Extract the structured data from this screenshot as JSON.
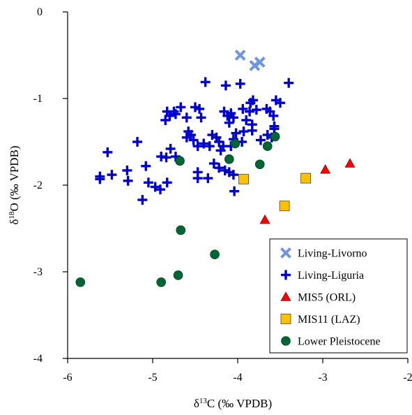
{
  "chart_data": {
    "type": "scatter",
    "xlabel_parts": [
      "δ",
      "13",
      "C (‰ VPDB)"
    ],
    "ylabel_parts": [
      "δ",
      "18",
      "O (‰ VPDB)"
    ],
    "xlim": [
      -6,
      -2
    ],
    "ylim": [
      -4,
      0
    ],
    "x_ticks": [
      -6,
      -5,
      -4,
      -3,
      -2
    ],
    "y_ticks": [
      0,
      -1,
      -2,
      -3,
      -4
    ],
    "x_tick_labels": [
      "-6",
      "-5",
      "-4",
      "-3",
      "-2"
    ],
    "y_tick_labels": [
      "0",
      "-1",
      "-2",
      "-3",
      "-4"
    ],
    "legend_position": "bottom-right",
    "grid": false,
    "series": [
      {
        "name": "Living-Livorno",
        "marker": "x",
        "color": "#6f95e0",
        "points": [
          [
            -3.97,
            -0.5
          ],
          [
            -3.8,
            -0.62
          ],
          [
            -3.74,
            -0.58
          ]
        ]
      },
      {
        "name": "Living-Liguria",
        "marker": "plus",
        "color": "#0000cc",
        "points": [
          [
            -3.4,
            -0.82
          ],
          [
            -3.97,
            -0.83
          ],
          [
            -4.14,
            -0.85
          ],
          [
            -4.38,
            -0.81
          ],
          [
            -3.55,
            -1.02
          ],
          [
            -3.82,
            -1.02
          ],
          [
            -3.85,
            -1.05
          ],
          [
            -4.67,
            -1.1
          ],
          [
            -4.75,
            -1.15
          ],
          [
            -4.83,
            -1.15
          ],
          [
            -4.8,
            -1.2
          ],
          [
            -4.85,
            -1.25
          ],
          [
            -4.73,
            -1.18
          ],
          [
            -4.5,
            -1.1
          ],
          [
            -4.45,
            -1.12
          ],
          [
            -4.43,
            -1.22
          ],
          [
            -4.6,
            -1.22
          ],
          [
            -4.16,
            -1.15
          ],
          [
            -4.08,
            -1.17
          ],
          [
            -4.05,
            -1.22
          ],
          [
            -4.1,
            -1.28
          ],
          [
            -4.12,
            -1.2
          ],
          [
            -3.94,
            -1.12
          ],
          [
            -3.86,
            -1.15
          ],
          [
            -3.78,
            -1.13
          ],
          [
            -3.66,
            -1.12
          ],
          [
            -3.62,
            -1.15
          ],
          [
            -3.58,
            -1.2
          ],
          [
            -3.9,
            -1.25
          ],
          [
            -3.83,
            -1.3
          ],
          [
            -3.83,
            -1.37
          ],
          [
            -3.93,
            -1.38
          ],
          [
            -4.58,
            -1.38
          ],
          [
            -4.55,
            -1.42
          ],
          [
            -4.6,
            -1.45
          ],
          [
            -4.52,
            -1.48
          ],
          [
            -4.3,
            -1.42
          ],
          [
            -4.25,
            -1.45
          ],
          [
            -4.22,
            -1.5
          ],
          [
            -4.17,
            -1.55
          ],
          [
            -4.2,
            -1.6
          ],
          [
            -4.02,
            -1.4
          ],
          [
            -4.05,
            -1.47
          ],
          [
            -4.08,
            -1.55
          ],
          [
            -3.95,
            -1.5
          ],
          [
            -3.73,
            -1.48
          ],
          [
            -3.65,
            -1.42
          ],
          [
            -3.6,
            -1.45
          ],
          [
            -3.57,
            -1.35
          ],
          [
            -3.57,
            -1.32
          ],
          [
            -3.5,
            -1.05
          ],
          [
            -4.4,
            -1.52
          ],
          [
            -4.47,
            -1.55
          ],
          [
            -4.33,
            -1.55
          ],
          [
            -4.79,
            -1.58
          ],
          [
            -4.84,
            -1.68
          ],
          [
            -4.73,
            -1.67
          ],
          [
            -4.9,
            -1.67
          ],
          [
            -5.18,
            -1.5
          ],
          [
            -5.53,
            -1.62
          ],
          [
            -4.28,
            -1.75
          ],
          [
            -4.22,
            -1.8
          ],
          [
            -4.15,
            -1.83
          ],
          [
            -4.1,
            -1.85
          ],
          [
            -4.05,
            -1.88
          ],
          [
            -4.47,
            -1.85
          ],
          [
            -4.35,
            -1.92
          ],
          [
            -4.47,
            -1.92
          ],
          [
            -5.3,
            -1.83
          ],
          [
            -5.48,
            -1.88
          ],
          [
            -5.62,
            -1.9
          ],
          [
            -5.62,
            -1.93
          ],
          [
            -5.29,
            -1.95
          ],
          [
            -5.08,
            -1.78
          ],
          [
            -5.05,
            -1.97
          ],
          [
            -4.97,
            -2.02
          ],
          [
            -4.83,
            -1.97
          ],
          [
            -4.91,
            -2.05
          ],
          [
            -5.12,
            -2.17
          ],
          [
            -4.04,
            -2.07
          ]
        ]
      },
      {
        "name": "MIS5 (ORL)",
        "marker": "triangle",
        "color": "#ff0000",
        "points": [
          [
            -3.68,
            -2.4
          ],
          [
            -2.97,
            -1.82
          ],
          [
            -2.68,
            -1.75
          ]
        ]
      },
      {
        "name": "MIS11 (LAZ)",
        "marker": "square",
        "color": "#ffc000",
        "points": [
          [
            -3.93,
            -1.93
          ],
          [
            -3.45,
            -2.24
          ],
          [
            -3.2,
            -1.92
          ]
        ]
      },
      {
        "name": "Lower Pleistocene",
        "marker": "circle",
        "color": "#006633",
        "points": [
          [
            -5.85,
            -3.12
          ],
          [
            -4.9,
            -3.12
          ],
          [
            -4.7,
            -3.04
          ],
          [
            -4.27,
            -2.8
          ],
          [
            -4.67,
            -2.52
          ],
          [
            -4.68,
            -1.72
          ],
          [
            -4.03,
            -1.52
          ],
          [
            -4.1,
            -1.7
          ],
          [
            -3.74,
            -1.76
          ],
          [
            -3.65,
            -1.55
          ],
          [
            -3.56,
            -1.44
          ]
        ]
      }
    ]
  }
}
